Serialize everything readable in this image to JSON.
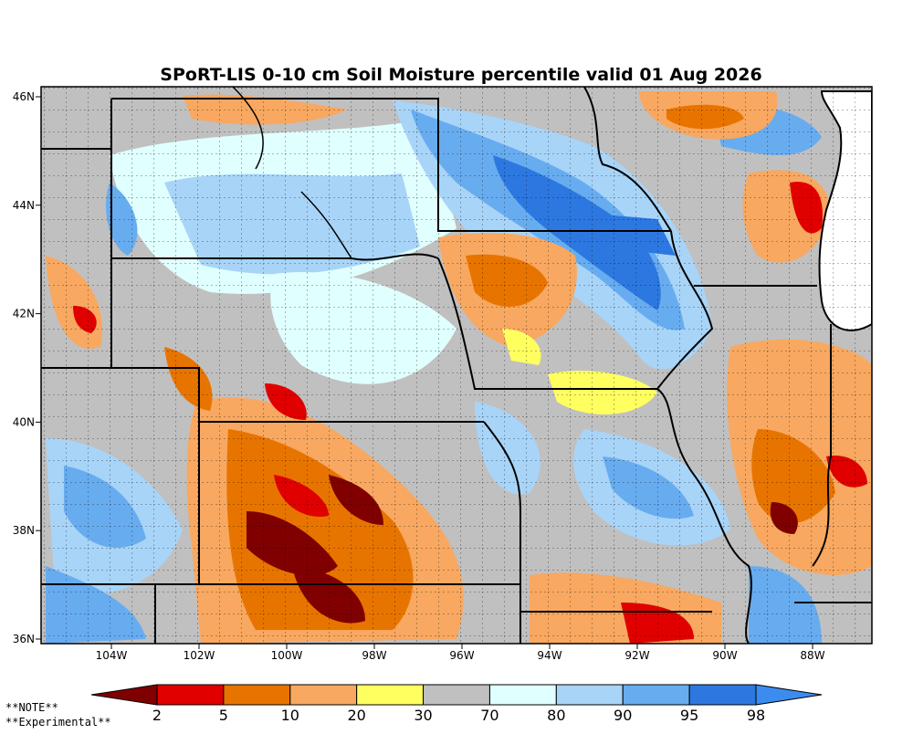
{
  "title": "SPoRT-LIS 0-10 cm Soil Moisture percentile valid 01 Aug 2026",
  "lat_ticks": [
    {
      "value": 46,
      "label": "46N"
    },
    {
      "value": 44,
      "label": "44N"
    },
    {
      "value": 42,
      "label": "42N"
    },
    {
      "value": 40,
      "label": "40N"
    },
    {
      "value": 38,
      "label": "38N"
    },
    {
      "value": 36,
      "label": "36N"
    }
  ],
  "lon_ticks": [
    {
      "value": -104,
      "label": "104W"
    },
    {
      "value": -102,
      "label": "102W"
    },
    {
      "value": -100,
      "label": "100W"
    },
    {
      "value": -98,
      "label": "98W"
    },
    {
      "value": -96,
      "label": "96W"
    },
    {
      "value": -94,
      "label": "94W"
    },
    {
      "value": -92,
      "label": "92W"
    },
    {
      "value": -90,
      "label": "90W"
    },
    {
      "value": -88,
      "label": "88W"
    }
  ],
  "colorbar": {
    "colors": [
      "#800000",
      "#e00000",
      "#e87400",
      "#f8a860",
      "#ffff60",
      "#c0c0c0",
      "#e0ffff",
      "#a8d4f8",
      "#68acf0",
      "#2c78e0",
      "#3c8cf0"
    ],
    "labels": [
      2,
      5,
      10,
      20,
      30,
      70,
      80,
      90,
      95,
      98
    ]
  },
  "notes": [
    "**NOTE**",
    "**Experimental**"
  ]
}
